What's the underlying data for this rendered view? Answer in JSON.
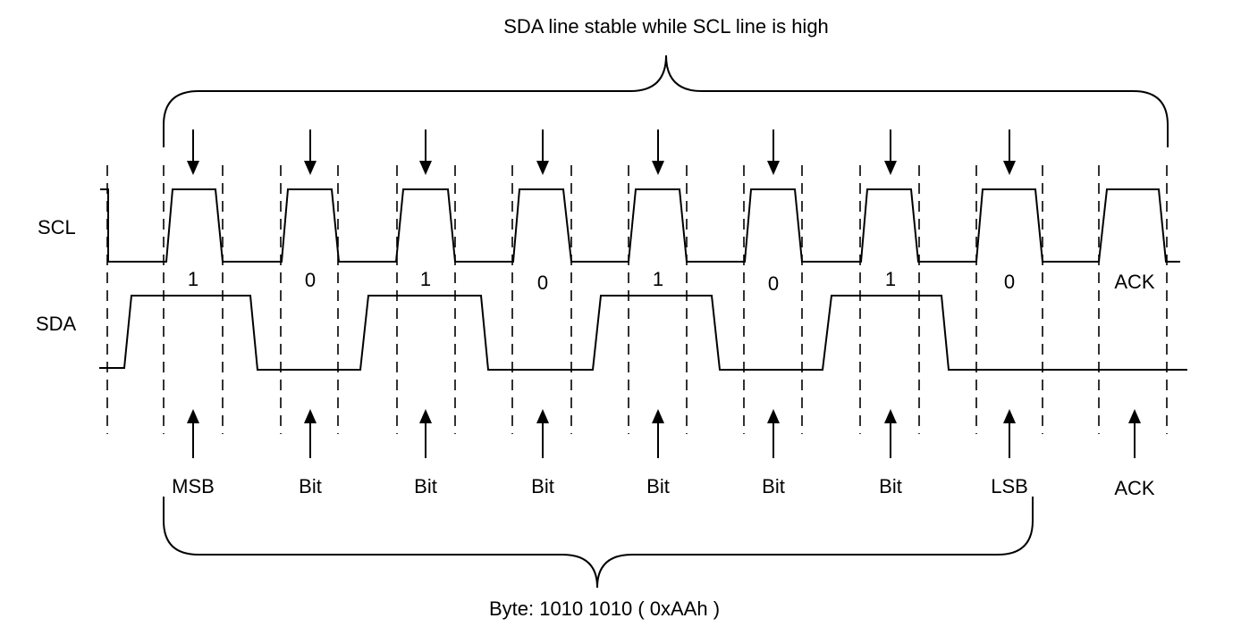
{
  "title": "SDA line stable while SCL line is high",
  "caption": "Byte: 1010 1010 ( 0xAAh )",
  "signals": {
    "scl": "SCL",
    "sda": "SDA"
  },
  "bits": [
    {
      "value": "1",
      "role": "MSB"
    },
    {
      "value": "0",
      "role": "Bit"
    },
    {
      "value": "1",
      "role": "Bit"
    },
    {
      "value": "0",
      "role": "Bit"
    },
    {
      "value": "1",
      "role": "Bit"
    },
    {
      "value": "0",
      "role": "Bit"
    },
    {
      "value": "1",
      "role": "Bit"
    },
    {
      "value": "0",
      "role": "LSB"
    },
    {
      "value": "ACK",
      "role": "ACK"
    }
  ]
}
